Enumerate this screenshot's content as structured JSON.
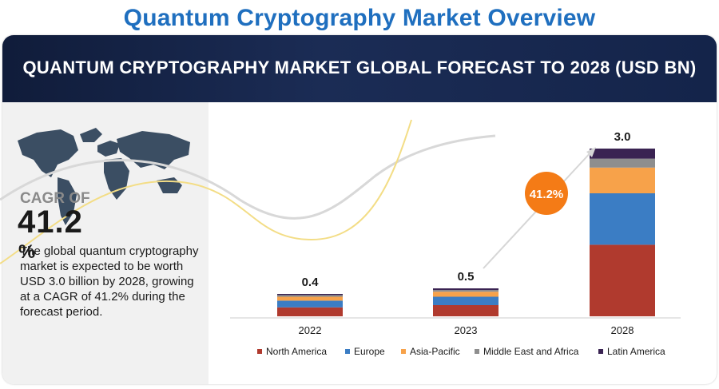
{
  "page": {
    "title": "Quantum Cryptography Market Overview",
    "banner_title": "QUANTUM CRYPTOGRAPHY MARKET GLOBAL FORECAST TO 2028 (USD BN)"
  },
  "highlight": {
    "cagr_label": "CAGR OF",
    "cagr_value": "41.2",
    "cagr_unit": "%",
    "summary": "The global quantum cryptography market is expected to be worth USD 3.0 billion by 2028, growing at a CAGR of 41.2% during the forecast period."
  },
  "chart_data": {
    "type": "bar",
    "stacked": true,
    "title": "QUANTUM CRYPTOGRAPHY MARKET GLOBAL FORECAST TO 2028 (USD BN)",
    "categories": [
      "2022",
      "2023",
      "2028"
    ],
    "totals": [
      "0.4",
      "0.5",
      "3.0"
    ],
    "series": [
      {
        "name": "North America",
        "color": "#b03a2e",
        "values": [
          0.16,
          0.2,
          1.28
        ]
      },
      {
        "name": "Europe",
        "color": "#3b7dc4",
        "values": [
          0.12,
          0.15,
          0.92
        ]
      },
      {
        "name": "Asia-Pacific",
        "color": "#f7a24a",
        "values": [
          0.07,
          0.09,
          0.46
        ]
      },
      {
        "name": "Middle East and Africa",
        "color": "#8e8e8e",
        "values": [
          0.03,
          0.03,
          0.16
        ]
      },
      {
        "name": "Latin America",
        "color": "#3a2352",
        "values": [
          0.02,
          0.03,
          0.18
        ]
      }
    ],
    "ylim": [
      0,
      3.0
    ],
    "growth_badge": "41.2%",
    "legend_position": "bottom",
    "grid": false
  },
  "colors": {
    "title_blue": "#1f6fbf",
    "banner_navy": "#14244a",
    "badge_orange": "#f47b16"
  }
}
